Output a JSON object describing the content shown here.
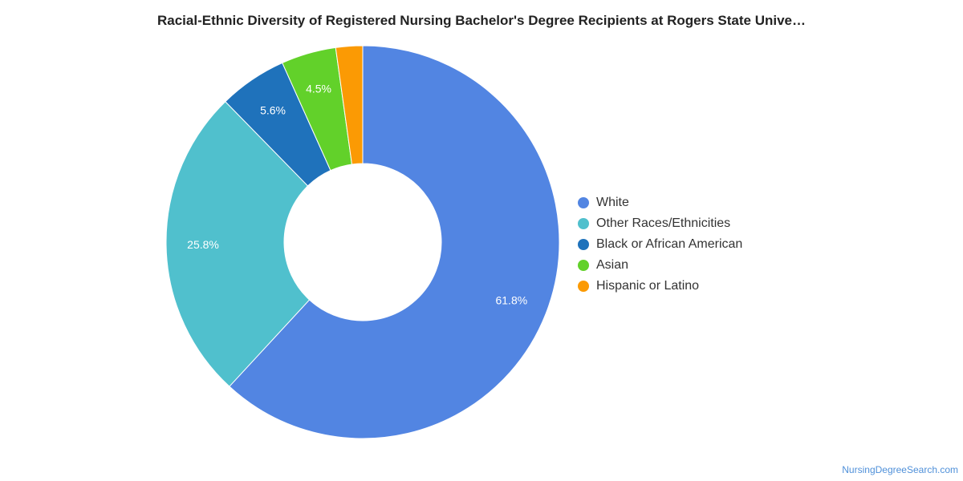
{
  "chart_data": {
    "type": "pie",
    "title": "Racial-Ethnic Diversity of Registered Nursing Bachelor's Degree Recipients at Rogers State Unive…",
    "categories": [
      "White",
      "Other Races/Ethnicities",
      "Black or African American",
      "Asian",
      "Hispanic or Latino"
    ],
    "values": [
      61.8,
      25.8,
      5.6,
      4.5,
      2.2
    ],
    "labels": [
      "61.8%",
      "25.8%",
      "5.6%",
      "4.5%",
      ""
    ],
    "colors": [
      "#5285e2",
      "#50c0cd",
      "#1f72bb",
      "#62d12a",
      "#fb9a04"
    ],
    "donut": true,
    "legend_position": "right"
  },
  "source": "NursingDegreeSearch.com"
}
